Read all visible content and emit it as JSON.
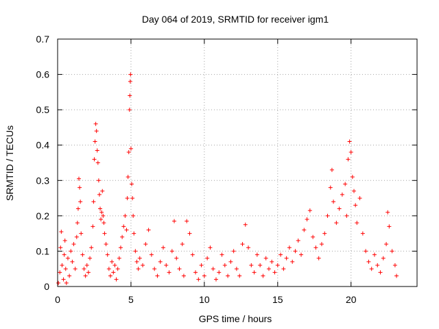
{
  "chart_data": {
    "type": "scatter",
    "title": "Day 064 of 2019, SRMTID for receiver igm1",
    "xlabel": "GPS time / hours",
    "ylabel": "SRMTID / TECUs",
    "xlim": [
      0,
      24.5
    ],
    "ylim": [
      0,
      0.7
    ],
    "xticks": [
      0,
      5,
      10,
      15,
      20
    ],
    "xtick_labels": [
      "0",
      "5",
      "10",
      "15",
      "20"
    ],
    "yticks": [
      0,
      0.1,
      0.2,
      0.3,
      0.4,
      0.5,
      0.6,
      0.7
    ],
    "ytick_labels": [
      "0",
      "0.1",
      "0.2",
      "0.3",
      "0.4",
      "0.5",
      "0.6",
      "0.7"
    ],
    "grid": true,
    "marker": "+",
    "series": [
      {
        "name": "SRMTID igm1",
        "color": "#ff0000",
        "points": [
          [
            0.05,
            0.01
          ],
          [
            0.15,
            0.04
          ],
          [
            0.2,
            0.11
          ],
          [
            0.25,
            0.155
          ],
          [
            0.3,
            0.06
          ],
          [
            0.4,
            0.02
          ],
          [
            0.45,
            0.09
          ],
          [
            0.5,
            0.13
          ],
          [
            0.55,
            0.05
          ],
          [
            0.6,
            0.01
          ],
          [
            0.7,
            0.08
          ],
          [
            0.8,
            0.03
          ],
          [
            0.9,
            0.1
          ],
          [
            1.0,
            0.07
          ],
          [
            1.1,
            0.12
          ],
          [
            1.2,
            0.05
          ],
          [
            1.3,
            0.14
          ],
          [
            1.35,
            0.18
          ],
          [
            1.4,
            0.22
          ],
          [
            1.45,
            0.305
          ],
          [
            1.5,
            0.28
          ],
          [
            1.55,
            0.24
          ],
          [
            1.6,
            0.15
          ],
          [
            1.7,
            0.09
          ],
          [
            1.8,
            0.05
          ],
          [
            1.9,
            0.03
          ],
          [
            2.0,
            0.06
          ],
          [
            2.1,
            0.04
          ],
          [
            2.2,
            0.08
          ],
          [
            2.3,
            0.11
          ],
          [
            2.4,
            0.17
          ],
          [
            2.45,
            0.24
          ],
          [
            2.5,
            0.36
          ],
          [
            2.55,
            0.41
          ],
          [
            2.6,
            0.46
          ],
          [
            2.65,
            0.44
          ],
          [
            2.7,
            0.385
          ],
          [
            2.75,
            0.35
          ],
          [
            2.8,
            0.3
          ],
          [
            2.85,
            0.26
          ],
          [
            2.9,
            0.22
          ],
          [
            2.95,
            0.19
          ],
          [
            3.0,
            0.21
          ],
          [
            3.05,
            0.27
          ],
          [
            3.1,
            0.2
          ],
          [
            3.15,
            0.18
          ],
          [
            3.2,
            0.15
          ],
          [
            3.3,
            0.12
          ],
          [
            3.4,
            0.09
          ],
          [
            3.5,
            0.05
          ],
          [
            3.6,
            0.03
          ],
          [
            3.7,
            0.07
          ],
          [
            3.8,
            0.04
          ],
          [
            3.9,
            0.06
          ],
          [
            4.0,
            0.02
          ],
          [
            4.1,
            0.05
          ],
          [
            4.2,
            0.08
          ],
          [
            4.3,
            0.11
          ],
          [
            4.4,
            0.14
          ],
          [
            4.5,
            0.17
          ],
          [
            4.6,
            0.2
          ],
          [
            4.7,
            0.16
          ],
          [
            4.75,
            0.25
          ],
          [
            4.8,
            0.31
          ],
          [
            4.85,
            0.38
          ],
          [
            4.9,
            0.5
          ],
          [
            4.92,
            0.54
          ],
          [
            4.95,
            0.58
          ],
          [
            4.97,
            0.6
          ],
          [
            5.0,
            0.39
          ],
          [
            5.05,
            0.29
          ],
          [
            5.1,
            0.25
          ],
          [
            5.15,
            0.2
          ],
          [
            5.2,
            0.15
          ],
          [
            5.3,
            0.1
          ],
          [
            5.4,
            0.07
          ],
          [
            5.5,
            0.05
          ],
          [
            5.6,
            0.08
          ],
          [
            5.8,
            0.06
          ],
          [
            6.0,
            0.12
          ],
          [
            6.2,
            0.16
          ],
          [
            6.4,
            0.09
          ],
          [
            6.6,
            0.05
          ],
          [
            6.8,
            0.03
          ],
          [
            7.0,
            0.07
          ],
          [
            7.2,
            0.11
          ],
          [
            7.4,
            0.06
          ],
          [
            7.6,
            0.04
          ],
          [
            7.8,
            0.1
          ],
          [
            7.95,
            0.185
          ],
          [
            8.1,
            0.08
          ],
          [
            8.3,
            0.05
          ],
          [
            8.5,
            0.12
          ],
          [
            8.6,
            0.03
          ],
          [
            8.8,
            0.185
          ],
          [
            9.0,
            0.15
          ],
          [
            9.2,
            0.09
          ],
          [
            9.4,
            0.04
          ],
          [
            9.6,
            0.02
          ],
          [
            9.8,
            0.06
          ],
          [
            10.0,
            0.03
          ],
          [
            10.2,
            0.08
          ],
          [
            10.4,
            0.11
          ],
          [
            10.6,
            0.05
          ],
          [
            10.8,
            0.02
          ],
          [
            11.0,
            0.04
          ],
          [
            11.2,
            0.09
          ],
          [
            11.4,
            0.06
          ],
          [
            11.6,
            0.03
          ],
          [
            11.8,
            0.07
          ],
          [
            12.0,
            0.1
          ],
          [
            12.2,
            0.05
          ],
          [
            12.4,
            0.03
          ],
          [
            12.6,
            0.12
          ],
          [
            12.8,
            0.175
          ],
          [
            13.0,
            0.11
          ],
          [
            13.2,
            0.06
          ],
          [
            13.4,
            0.04
          ],
          [
            13.6,
            0.09
          ],
          [
            13.8,
            0.06
          ],
          [
            14.0,
            0.03
          ],
          [
            14.2,
            0.08
          ],
          [
            14.4,
            0.05
          ],
          [
            14.6,
            0.07
          ],
          [
            14.8,
            0.04
          ],
          [
            15.0,
            0.06
          ],
          [
            15.2,
            0.09
          ],
          [
            15.4,
            0.05
          ],
          [
            15.6,
            0.08
          ],
          [
            15.8,
            0.11
          ],
          [
            16.0,
            0.07
          ],
          [
            16.2,
            0.1
          ],
          [
            16.4,
            0.13
          ],
          [
            16.6,
            0.09
          ],
          [
            16.8,
            0.16
          ],
          [
            17.0,
            0.19
          ],
          [
            17.2,
            0.215
          ],
          [
            17.4,
            0.14
          ],
          [
            17.6,
            0.11
          ],
          [
            17.8,
            0.08
          ],
          [
            18.0,
            0.12
          ],
          [
            18.2,
            0.15
          ],
          [
            18.4,
            0.2
          ],
          [
            18.6,
            0.28
          ],
          [
            18.7,
            0.33
          ],
          [
            18.8,
            0.24
          ],
          [
            19.0,
            0.18
          ],
          [
            19.2,
            0.22
          ],
          [
            19.4,
            0.26
          ],
          [
            19.6,
            0.29
          ],
          [
            19.7,
            0.2
          ],
          [
            19.8,
            0.36
          ],
          [
            19.9,
            0.41
          ],
          [
            20.0,
            0.38
          ],
          [
            20.1,
            0.31
          ],
          [
            20.2,
            0.27
          ],
          [
            20.3,
            0.23
          ],
          [
            20.4,
            0.18
          ],
          [
            20.6,
            0.25
          ],
          [
            20.8,
            0.15
          ],
          [
            21.0,
            0.1
          ],
          [
            21.2,
            0.07
          ],
          [
            21.4,
            0.05
          ],
          [
            21.6,
            0.09
          ],
          [
            21.8,
            0.06
          ],
          [
            22.0,
            0.04
          ],
          [
            22.2,
            0.08
          ],
          [
            22.4,
            0.12
          ],
          [
            22.5,
            0.21
          ],
          [
            22.6,
            0.17
          ],
          [
            22.8,
            0.1
          ],
          [
            23.0,
            0.06
          ],
          [
            23.1,
            0.03
          ]
        ]
      }
    ]
  }
}
